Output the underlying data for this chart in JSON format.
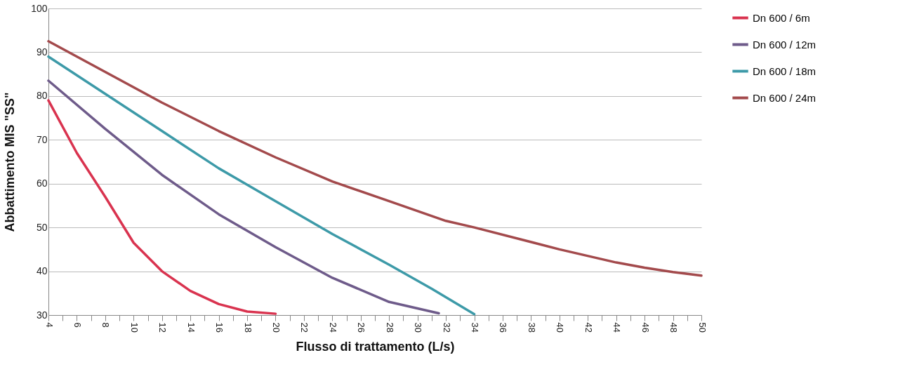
{
  "chart_data": {
    "type": "line",
    "xlabel": "Flusso di trattamento (L/s)",
    "ylabel": "Abbattimento MIS \"SS\"",
    "xlim": [
      4,
      50
    ],
    "ylim": [
      30,
      100
    ],
    "xticks": [
      4,
      {
        "value": 5,
        "label": null
      },
      6,
      {
        "value": 7,
        "label": null
      },
      8,
      {
        "value": 9,
        "label": null
      },
      10,
      {
        "value": 11,
        "label": null
      },
      12,
      {
        "value": 13,
        "label": null
      },
      14,
      {
        "value": 15,
        "label": null
      },
      16,
      {
        "value": 17,
        "label": null
      },
      18,
      {
        "value": 19,
        "label": null
      },
      20,
      {
        "value": 21,
        "label": null
      },
      22,
      {
        "value": 23,
        "label": null
      },
      24,
      {
        "value": 25,
        "label": null
      },
      26,
      {
        "value": 27,
        "label": null
      },
      28,
      {
        "value": 29,
        "label": null
      },
      30,
      {
        "value": 31,
        "label": null
      },
      32,
      {
        "value": 33,
        "label": null
      },
      34,
      {
        "value": 35,
        "label": null
      },
      36,
      {
        "value": 37,
        "label": null
      },
      38,
      {
        "value": 39,
        "label": null
      },
      40,
      {
        "value": 41,
        "label": null
      },
      42,
      {
        "value": 43,
        "label": null
      },
      44,
      {
        "value": 45,
        "label": null
      },
      46,
      {
        "value": 47,
        "label": null
      },
      48,
      {
        "value": 49,
        "label": null
      },
      50
    ],
    "yticks": [
      30,
      40,
      50,
      60,
      70,
      80,
      90,
      100
    ],
    "grid": "y",
    "legend": "top right",
    "series": [
      {
        "name": "Dn 600 / 6m",
        "color": "#d9334f",
        "x": [
          4,
          6,
          8,
          10,
          12,
          14,
          16,
          18,
          20
        ],
        "values": [
          79,
          67,
          57,
          46.5,
          40,
          35.5,
          32.5,
          30.8,
          30.3
        ]
      },
      {
        "name": "Dn 600 / 12m",
        "color": "#6e5b8a",
        "x": [
          4,
          8,
          12,
          16,
          20,
          24,
          28,
          31.5
        ],
        "values": [
          83.5,
          72.5,
          62,
          53,
          45.5,
          38.5,
          33,
          30.4
        ]
      },
      {
        "name": "Dn 600 / 18m",
        "color": "#3d9aa8",
        "x": [
          4,
          8,
          12,
          16,
          20,
          24,
          28,
          31,
          34
        ],
        "values": [
          89,
          80.5,
          72,
          63.5,
          56,
          48.5,
          41.5,
          36,
          30.2
        ]
      },
      {
        "name": "Dn 600 / 24m",
        "color": "#a34a4c",
        "x": [
          4,
          8,
          12,
          16,
          20,
          24,
          28,
          32,
          34,
          40,
          44,
          46,
          48,
          50
        ],
        "values": [
          92.5,
          85.5,
          78.5,
          72,
          66,
          60.5,
          56,
          51.5,
          50,
          45,
          42,
          40.8,
          39.8,
          39
        ]
      }
    ]
  }
}
